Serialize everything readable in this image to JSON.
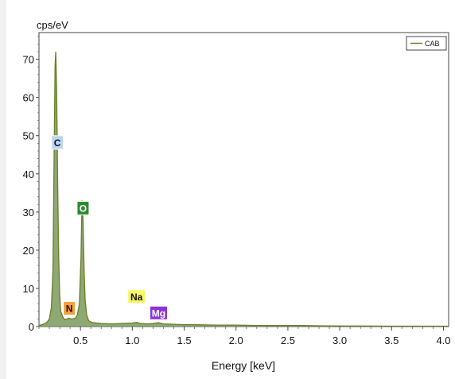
{
  "chart_data": {
    "type": "area",
    "title": "",
    "ylabel": "cps/eV",
    "xlabel": "Energy [keV]",
    "xlim": [
      0.1,
      4.05
    ],
    "ylim": [
      0,
      77
    ],
    "xticks": [
      0.5,
      1.0,
      1.5,
      2.0,
      2.5,
      3.0,
      3.5,
      4.0
    ],
    "xtick_labels": [
      "0.5",
      "1.0",
      "1.5",
      "2.0",
      "2.5",
      "3.0",
      "3.5",
      "4.0"
    ],
    "yticks": [
      0,
      10,
      20,
      30,
      40,
      50,
      60,
      70
    ],
    "ytick_labels": [
      "0",
      "10",
      "20",
      "30",
      "40",
      "50",
      "60",
      "70"
    ],
    "grid": false,
    "legend_position": "top-right",
    "series": [
      {
        "name": "CAB",
        "color": "#6b7d2a",
        "fill": "#7a9a5a",
        "x": [
          0.1,
          0.13,
          0.16,
          0.18,
          0.2,
          0.22,
          0.235,
          0.245,
          0.255,
          0.262,
          0.27,
          0.28,
          0.29,
          0.3,
          0.31,
          0.33,
          0.35,
          0.37,
          0.39,
          0.41,
          0.43,
          0.45,
          0.47,
          0.49,
          0.505,
          0.515,
          0.525,
          0.535,
          0.545,
          0.56,
          0.58,
          0.62,
          0.7,
          0.8,
          0.9,
          1.0,
          1.04,
          1.08,
          1.15,
          1.2,
          1.25,
          1.3,
          1.4,
          1.5,
          1.6,
          1.8,
          2.0,
          2.2,
          2.4,
          2.6,
          2.8,
          3.0,
          3.2,
          3.5,
          3.8,
          4.0,
          4.05
        ],
        "y": [
          0.3,
          0.5,
          0.8,
          1.2,
          2.0,
          5.0,
          15,
          42,
          68,
          72,
          62,
          38,
          18,
          8,
          4,
          2.5,
          1.8,
          2.0,
          2.2,
          2.0,
          2.0,
          2.2,
          3.0,
          6.0,
          18,
          33,
          28,
          15,
          7,
          3.0,
          1.5,
          1.0,
          0.8,
          0.7,
          0.8,
          0.9,
          1.1,
          0.8,
          0.7,
          0.8,
          1.0,
          0.7,
          0.6,
          0.5,
          0.5,
          0.4,
          0.4,
          0.3,
          0.3,
          0.3,
          0.2,
          0.15,
          0.15,
          0.1,
          0.1,
          0.1,
          0.1
        ]
      }
    ],
    "element_labels": [
      {
        "symbol": "C",
        "energy": 0.277,
        "color": "#bcd7f0",
        "text_color": "#111111"
      },
      {
        "symbol": "O",
        "energy": 0.525,
        "color": "#2e8b2e",
        "text_color": "#ffffff"
      },
      {
        "symbol": "N",
        "energy": 0.392,
        "color": "#f5a03c",
        "text_color": "#111111"
      },
      {
        "symbol": "Na",
        "energy": 1.041,
        "color": "#f7f763",
        "text_color": "#111111"
      },
      {
        "symbol": "Mg",
        "energy": 1.254,
        "color": "#8a35d6",
        "text_color": "#ffffff"
      }
    ]
  }
}
